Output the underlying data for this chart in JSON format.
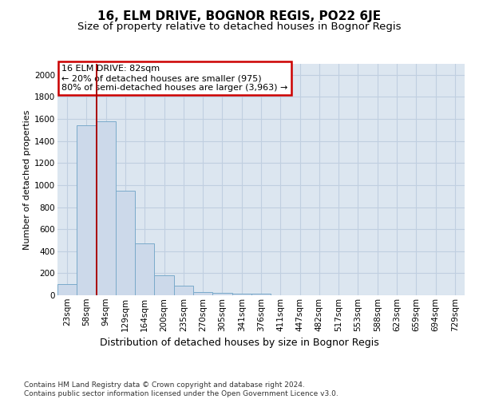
{
  "title1": "16, ELM DRIVE, BOGNOR REGIS, PO22 6JE",
  "title2": "Size of property relative to detached houses in Bognor Regis",
  "xlabel": "Distribution of detached houses by size in Bognor Regis",
  "ylabel": "Number of detached properties",
  "categories": [
    "23sqm",
    "58sqm",
    "94sqm",
    "129sqm",
    "164sqm",
    "200sqm",
    "235sqm",
    "270sqm",
    "305sqm",
    "341sqm",
    "376sqm",
    "411sqm",
    "447sqm",
    "482sqm",
    "517sqm",
    "553sqm",
    "588sqm",
    "623sqm",
    "659sqm",
    "694sqm",
    "729sqm"
  ],
  "values": [
    100,
    1540,
    1580,
    950,
    470,
    180,
    90,
    30,
    20,
    15,
    15,
    0,
    0,
    0,
    0,
    0,
    0,
    0,
    0,
    0,
    0
  ],
  "bar_color": "#ccd9ea",
  "bar_edge_color": "#7aaaca",
  "vline_x": 1.5,
  "vline_color": "#aa0000",
  "annotation_line1": "16 ELM DRIVE: 82sqm",
  "annotation_line2": "← 20% of detached houses are smaller (975)",
  "annotation_line3": "80% of semi-detached houses are larger (3,963) →",
  "annotation_box_facecolor": "#ffffff",
  "annotation_box_edgecolor": "#cc0000",
  "ylim": [
    0,
    2100
  ],
  "yticks": [
    0,
    200,
    400,
    600,
    800,
    1000,
    1200,
    1400,
    1600,
    1800,
    2000
  ],
  "footer_line1": "Contains HM Land Registry data © Crown copyright and database right 2024.",
  "footer_line2": "Contains public sector information licensed under the Open Government Licence v3.0.",
  "plot_bg_color": "#dce6f0",
  "grid_color": "#c0cfe0",
  "title1_fontsize": 11,
  "title2_fontsize": 9.5,
  "tick_fontsize": 7.5,
  "ylabel_fontsize": 8,
  "xlabel_fontsize": 9,
  "ann_fontsize": 8,
  "footer_fontsize": 6.5
}
